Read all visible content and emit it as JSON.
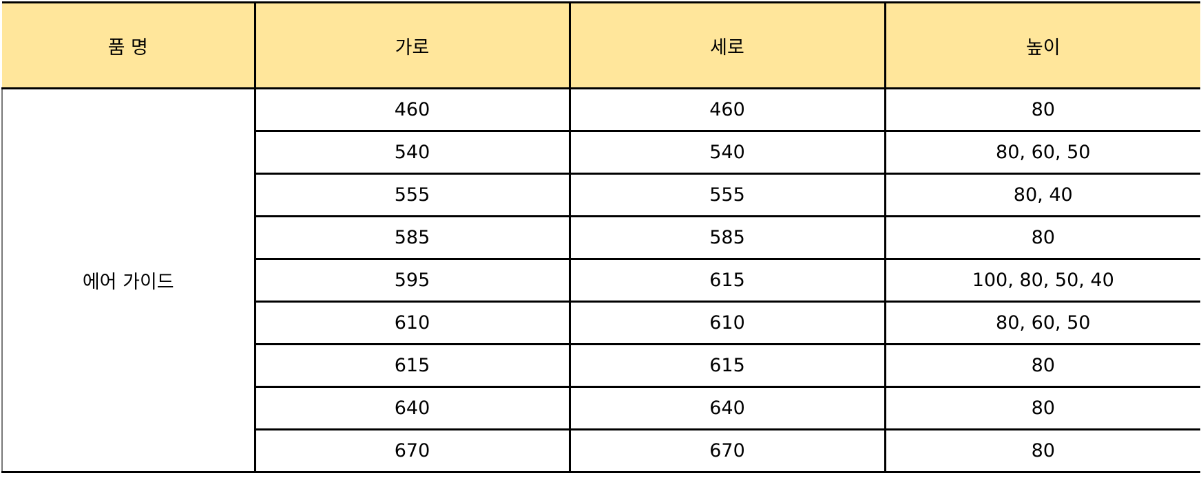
{
  "headers": [
    "품 명",
    "가로",
    "세로",
    "높이"
  ],
  "product_name": "에어 가이드",
  "rows": [
    {
      "width": "460",
      "depth": "460",
      "height": "80"
    },
    {
      "width": "540",
      "depth": "540",
      "height": "80, 60, 50"
    },
    {
      "width": "555",
      "depth": "555",
      "height": "80, 40"
    },
    {
      "width": "585",
      "depth": "585",
      "height": "80"
    },
    {
      "width": "595",
      "depth": "615",
      "height": "100, 80, 50, 40"
    },
    {
      "width": "610",
      "depth": "610",
      "height": "80, 60, 50"
    },
    {
      "width": "615",
      "depth": "615",
      "height": "80"
    },
    {
      "width": "640",
      "depth": "640",
      "height": "80"
    },
    {
      "width": "670",
      "depth": "670",
      "height": "80"
    }
  ],
  "colors": {
    "header_bg": "#FFE69B",
    "border": "#000000"
  }
}
